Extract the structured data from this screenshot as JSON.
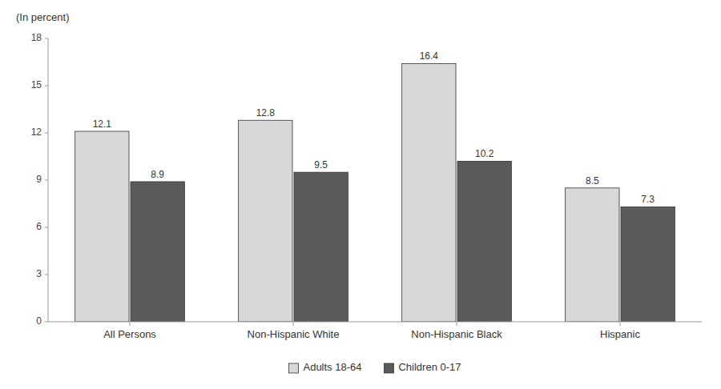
{
  "chart_data": {
    "type": "bar",
    "ylabel": "(In percent)",
    "categories": [
      "All Persons",
      "Non-Hispanic White",
      "Non-Hispanic Black",
      "Hispanic"
    ],
    "series": [
      {
        "name": "Adults 18-64",
        "color": "#d8d8d8",
        "values": [
          12.1,
          12.8,
          16.4,
          8.5
        ]
      },
      {
        "name": "Children 0-17",
        "color": "#5a5a5a",
        "values": [
          8.9,
          9.5,
          10.2,
          7.3
        ]
      }
    ],
    "ylim": [
      0,
      18
    ],
    "yticks": [
      0,
      3,
      6,
      9,
      12,
      15,
      18
    ],
    "data_labels": true,
    "grid": false,
    "legend": "bottom"
  }
}
